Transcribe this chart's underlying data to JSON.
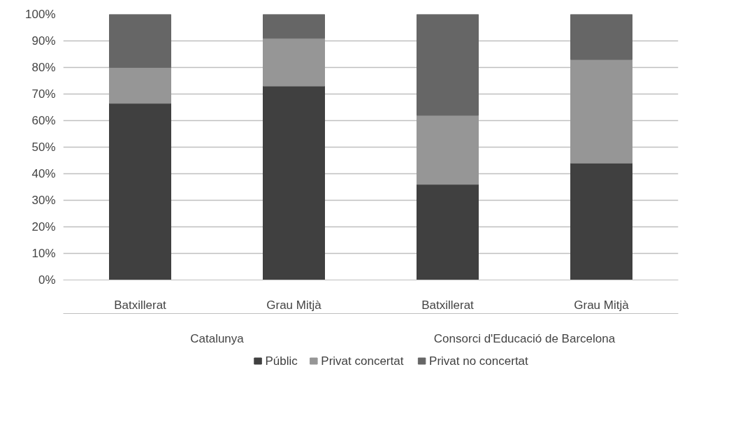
{
  "chart_data": {
    "type": "bar",
    "stacked": true,
    "categories": [
      "Batxillerat",
      "Grau Mitjà",
      "Batxillerat",
      "Grau Mitjà"
    ],
    "annotations": [
      "Catalunya",
      "Consorci d'Educació de Barcelona"
    ],
    "series": [
      {
        "name": "Públic",
        "color": "#404040",
        "values": [
          66.5,
          73,
          36,
          44
        ]
      },
      {
        "name": "Privat concertat",
        "color": "#969696",
        "values": [
          13.5,
          18,
          26,
          39
        ]
      },
      {
        "name": "Privat no concertat",
        "color": "#666666",
        "values": [
          20,
          9,
          38,
          17
        ]
      }
    ],
    "ylim": [
      0,
      100
    ],
    "yticks": [
      {
        "value": 0,
        "label": "0%"
      },
      {
        "value": 10,
        "label": "10%"
      },
      {
        "value": 20,
        "label": "20%"
      },
      {
        "value": 30,
        "label": "30%"
      },
      {
        "value": 40,
        "label": "40%"
      },
      {
        "value": 50,
        "label": "50%"
      },
      {
        "value": 60,
        "label": "60%"
      },
      {
        "value": 70,
        "label": "70%"
      },
      {
        "value": 80,
        "label": "80%"
      },
      {
        "value": 90,
        "label": "90%"
      },
      {
        "value": 100,
        "label": "100%"
      }
    ],
    "grid": "y",
    "legend": "bottom"
  }
}
